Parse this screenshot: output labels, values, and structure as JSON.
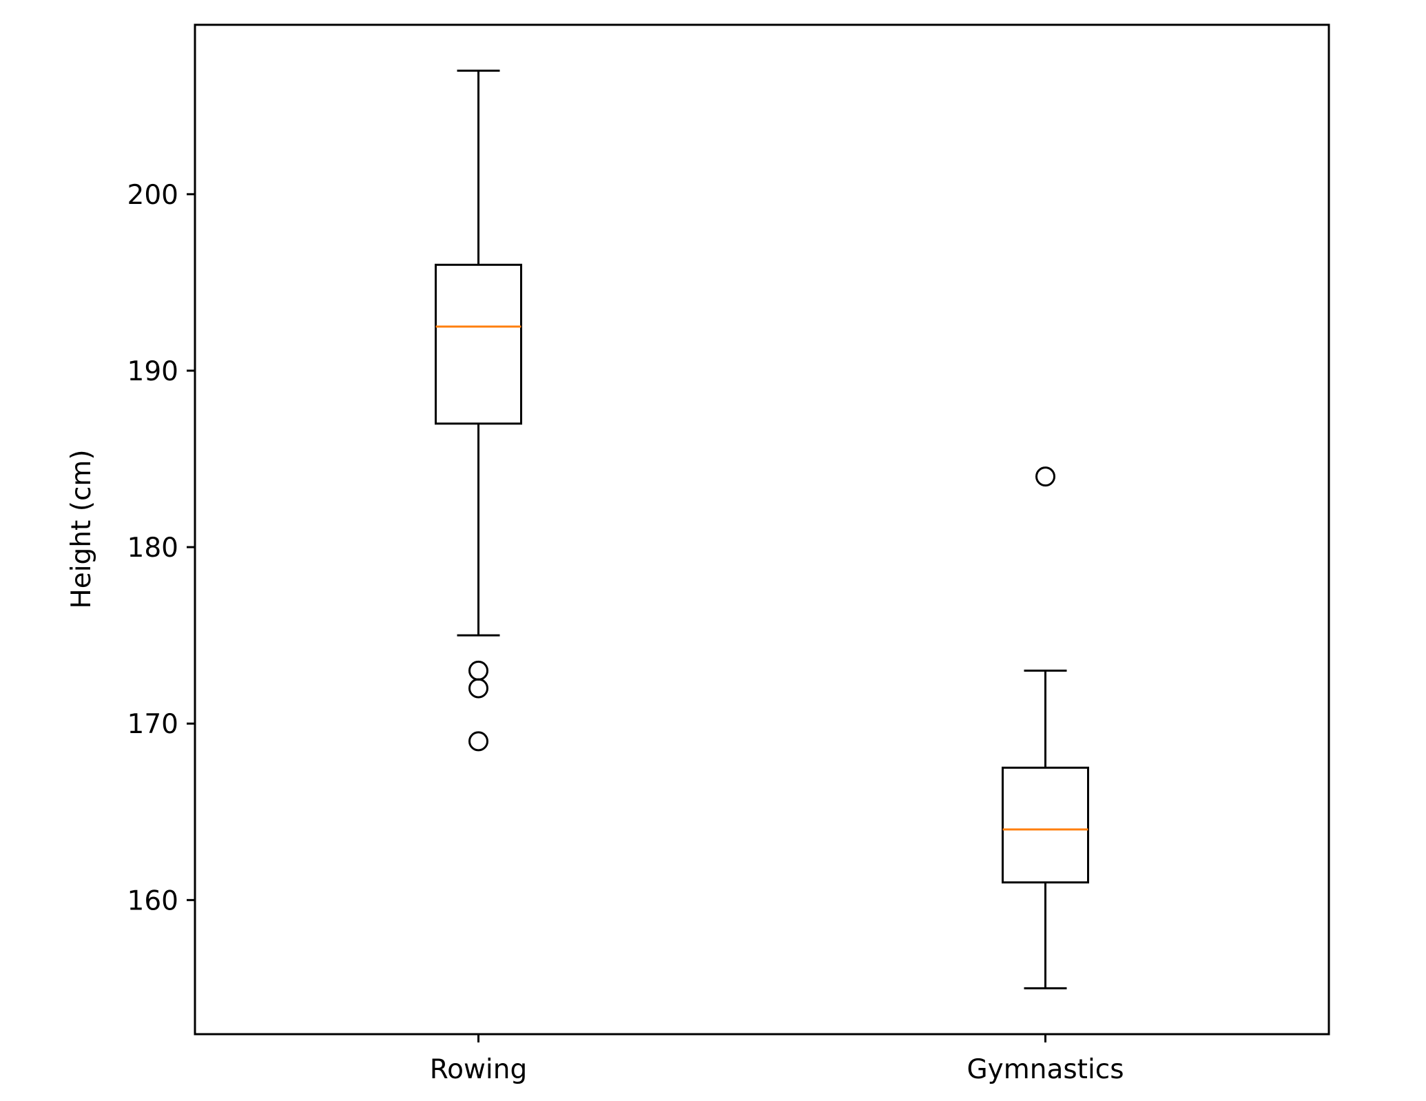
{
  "chart_data": {
    "type": "boxplot",
    "title": "",
    "xlabel": "",
    "ylabel": "Height (cm)",
    "ylim": [
      152.4,
      209.6
    ],
    "yticks": [
      160,
      170,
      180,
      190,
      200
    ],
    "grid": false,
    "categories": [
      "Rowing",
      "Gymnastics"
    ],
    "boxes": [
      {
        "category": "Rowing",
        "whisker_low": 175,
        "q1": 187,
        "median": 192.5,
        "q3": 196,
        "whisker_high": 207,
        "outliers": [
          173,
          172,
          169
        ]
      },
      {
        "category": "Gymnastics",
        "whisker_low": 155,
        "q1": 161,
        "median": 164,
        "q3": 167.5,
        "whisker_high": 173,
        "outliers": [
          184
        ]
      }
    ],
    "colors": {
      "box": "#000000",
      "median": "#ff7f0e"
    }
  }
}
